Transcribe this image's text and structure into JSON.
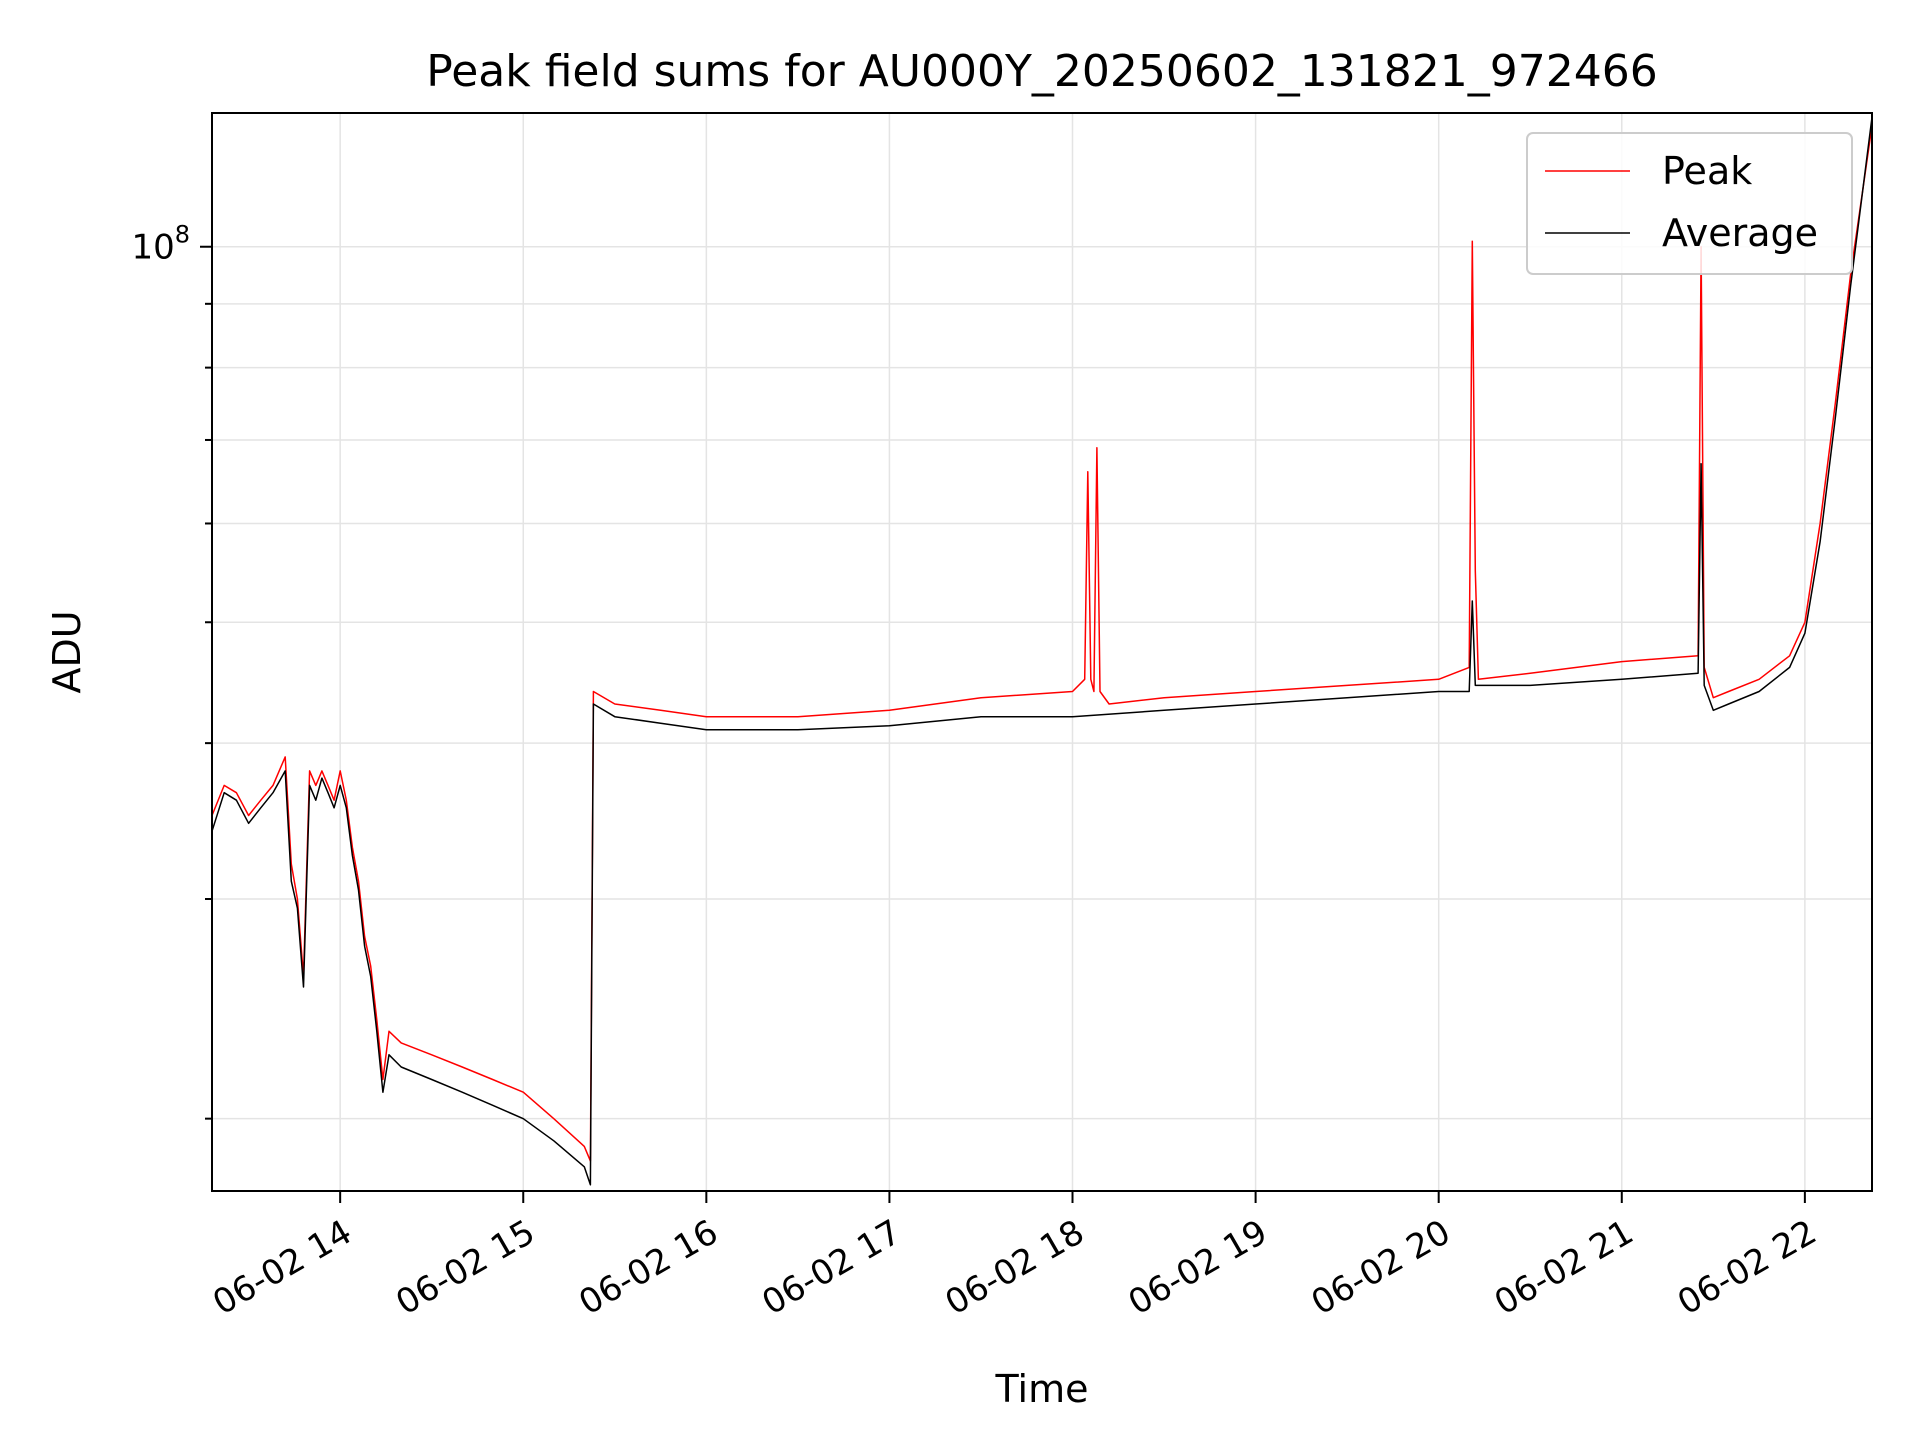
{
  "chart_data": {
    "type": "line",
    "title": "Peak field sums for AU000Y_20250602_131821_972466",
    "xlabel": "Time",
    "ylabel": "ADU",
    "y_scale": "log",
    "xlim": [
      "2025-06-02 13:18",
      "2025-06-02 22:22"
    ],
    "ylim": [
      17500000,
      128000000
    ],
    "grid": true,
    "legend_position": "top-right",
    "x_ticks": [
      "2025-06-02 14:00",
      "2025-06-02 15:00",
      "2025-06-02 16:00",
      "2025-06-02 17:00",
      "2025-06-02 18:00",
      "2025-06-02 19:00",
      "2025-06-02 20:00",
      "2025-06-02 21:00",
      "2025-06-02 22:00"
    ],
    "x_tick_labels": [
      "06-02 14",
      "06-02 15",
      "06-02 16",
      "06-02 17",
      "06-02 18",
      "06-02 19",
      "06-02 20",
      "06-02 21",
      "06-02 22"
    ],
    "y_major_ticks": [
      100000000
    ],
    "y_major_tick_labels": [
      "10^8"
    ],
    "y_minor_ticks": [
      20000000,
      30000000,
      40000000,
      50000000,
      60000000,
      70000000,
      80000000,
      90000000
    ],
    "series": [
      {
        "name": "Peak",
        "color": "#ff0000",
        "x": [
          "2025-06-02 13:18",
          "2025-06-02 13:22",
          "2025-06-02 13:26",
          "2025-06-02 13:30",
          "2025-06-02 13:34",
          "2025-06-02 13:38",
          "2025-06-02 13:42",
          "2025-06-02 13:44",
          "2025-06-02 13:46",
          "2025-06-02 13:48",
          "2025-06-02 13:50",
          "2025-06-02 13:52",
          "2025-06-02 13:54",
          "2025-06-02 13:56",
          "2025-06-02 13:58",
          "2025-06-02 14:00",
          "2025-06-02 14:02",
          "2025-06-02 14:04",
          "2025-06-02 14:06",
          "2025-06-02 14:08",
          "2025-06-02 14:10",
          "2025-06-02 14:12",
          "2025-06-02 14:14",
          "2025-06-02 14:16",
          "2025-06-02 14:20",
          "2025-06-02 14:30",
          "2025-06-02 14:40",
          "2025-06-02 14:50",
          "2025-06-02 15:00",
          "2025-06-02 15:10",
          "2025-06-02 15:20",
          "2025-06-02 15:22",
          "2025-06-02 15:23",
          "2025-06-02 15:30",
          "2025-06-02 15:45",
          "2025-06-02 16:00",
          "2025-06-02 16:30",
          "2025-06-02 17:00",
          "2025-06-02 17:30",
          "2025-06-02 18:00",
          "2025-06-02 18:04",
          "2025-06-02 18:05",
          "2025-06-02 18:06",
          "2025-06-02 18:07",
          "2025-06-02 18:08",
          "2025-06-02 18:09",
          "2025-06-02 18:12",
          "2025-06-02 18:30",
          "2025-06-02 19:00",
          "2025-06-02 19:30",
          "2025-06-02 20:00",
          "2025-06-02 20:10",
          "2025-06-02 20:11",
          "2025-06-02 20:12",
          "2025-06-02 20:13",
          "2025-06-02 20:30",
          "2025-06-02 21:00",
          "2025-06-02 21:25",
          "2025-06-02 21:26",
          "2025-06-02 21:27",
          "2025-06-02 21:30",
          "2025-06-02 21:35",
          "2025-06-02 21:45",
          "2025-06-02 21:55",
          "2025-06-02 22:00",
          "2025-06-02 22:05",
          "2025-06-02 22:10",
          "2025-06-02 22:15",
          "2025-06-02 22:22"
        ],
        "y": [
          35000000,
          37000000,
          36500000,
          35000000,
          36000000,
          37000000,
          39000000,
          32000000,
          30000000,
          26000000,
          38000000,
          37000000,
          38000000,
          37000000,
          36000000,
          38000000,
          36000000,
          33000000,
          31000000,
          28000000,
          26500000,
          24000000,
          21500000,
          23500000,
          23000000,
          22500000,
          22000000,
          21500000,
          21000000,
          20000000,
          19000000,
          18500000,
          44000000,
          43000000,
          42500000,
          42000000,
          42000000,
          42500000,
          43500000,
          44000000,
          45000000,
          66000000,
          45000000,
          44000000,
          69000000,
          44000000,
          43000000,
          43500000,
          44000000,
          44500000,
          45000000,
          46000000,
          101000000,
          55000000,
          45000000,
          45500000,
          46500000,
          47000000,
          100000000,
          46000000,
          43500000,
          44000000,
          45000000,
          47000000,
          50000000,
          60000000,
          75000000,
          95000000,
          125000000
        ]
      },
      {
        "name": "Average",
        "color": "#000000",
        "x": [
          "2025-06-02 13:18",
          "2025-06-02 13:22",
          "2025-06-02 13:26",
          "2025-06-02 13:30",
          "2025-06-02 13:34",
          "2025-06-02 13:38",
          "2025-06-02 13:42",
          "2025-06-02 13:44",
          "2025-06-02 13:46",
          "2025-06-02 13:48",
          "2025-06-02 13:50",
          "2025-06-02 13:52",
          "2025-06-02 13:54",
          "2025-06-02 13:56",
          "2025-06-02 13:58",
          "2025-06-02 14:00",
          "2025-06-02 14:02",
          "2025-06-02 14:04",
          "2025-06-02 14:06",
          "2025-06-02 14:08",
          "2025-06-02 14:10",
          "2025-06-02 14:12",
          "2025-06-02 14:14",
          "2025-06-02 14:16",
          "2025-06-02 14:20",
          "2025-06-02 14:30",
          "2025-06-02 14:40",
          "2025-06-02 14:50",
          "2025-06-02 15:00",
          "2025-06-02 15:10",
          "2025-06-02 15:20",
          "2025-06-02 15:22",
          "2025-06-02 15:23",
          "2025-06-02 15:30",
          "2025-06-02 15:45",
          "2025-06-02 16:00",
          "2025-06-02 16:30",
          "2025-06-02 17:00",
          "2025-06-02 17:30",
          "2025-06-02 18:00",
          "2025-06-02 18:30",
          "2025-06-02 19:00",
          "2025-06-02 19:30",
          "2025-06-02 20:00",
          "2025-06-02 20:10",
          "2025-06-02 20:11",
          "2025-06-02 20:12",
          "2025-06-02 20:30",
          "2025-06-02 21:00",
          "2025-06-02 21:25",
          "2025-06-02 21:26",
          "2025-06-02 21:27",
          "2025-06-02 21:30",
          "2025-06-02 21:35",
          "2025-06-02 21:45",
          "2025-06-02 21:55",
          "2025-06-02 22:00",
          "2025-06-02 22:05",
          "2025-06-02 22:10",
          "2025-06-02 22:15",
          "2025-06-02 22:22"
        ],
        "y": [
          34000000,
          36500000,
          36000000,
          34500000,
          35500000,
          36500000,
          38000000,
          31000000,
          29500000,
          25500000,
          37000000,
          36000000,
          37500000,
          36500000,
          35500000,
          37000000,
          35500000,
          32500000,
          30500000,
          27500000,
          26000000,
          23500000,
          21000000,
          22500000,
          22000000,
          21500000,
          21000000,
          20500000,
          20000000,
          19200000,
          18300000,
          17700000,
          43000000,
          42000000,
          41500000,
          41000000,
          41000000,
          41300000,
          42000000,
          42000000,
          42500000,
          43000000,
          43500000,
          44000000,
          44000000,
          52000000,
          44500000,
          44500000,
          45000000,
          45500000,
          67000000,
          44500000,
          42500000,
          43000000,
          44000000,
          46000000,
          49000000,
          58000000,
          73000000,
          93000000,
          127000000
        ]
      }
    ]
  }
}
